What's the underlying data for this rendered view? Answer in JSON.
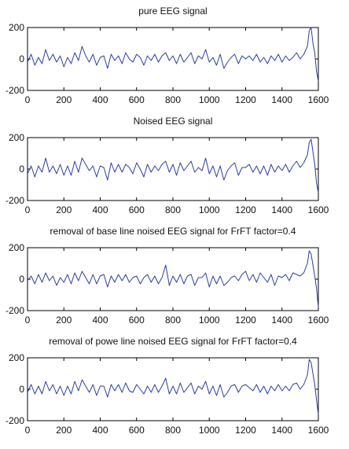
{
  "chart_data": [
    {
      "type": "line",
      "title": "pure EEG signal",
      "xlabel": "",
      "ylabel": "",
      "xlim": [
        0,
        1600
      ],
      "ylim": [
        -200,
        200
      ],
      "x_ticks": [
        "0",
        "200",
        "400",
        "600",
        "800",
        "1000",
        "1200",
        "1400",
        "1600"
      ],
      "y_ticks": [
        "200",
        "0",
        "-200"
      ],
      "grid": false,
      "series": [
        {
          "color": "#2b3f9e",
          "x": [
            0,
            20,
            40,
            60,
            80,
            100,
            120,
            140,
            160,
            180,
            200,
            220,
            240,
            260,
            280,
            300,
            320,
            340,
            360,
            380,
            400,
            420,
            440,
            460,
            480,
            500,
            520,
            540,
            560,
            580,
            600,
            620,
            640,
            660,
            680,
            700,
            720,
            740,
            760,
            780,
            800,
            820,
            840,
            860,
            880,
            900,
            920,
            940,
            960,
            980,
            1000,
            1020,
            1040,
            1060,
            1080,
            1100,
            1120,
            1140,
            1160,
            1180,
            1200,
            1220,
            1240,
            1260,
            1280,
            1300,
            1320,
            1340,
            1360,
            1380,
            1400,
            1420,
            1440,
            1460,
            1480,
            1500,
            1520,
            1540,
            1550,
            1560,
            1570,
            1580,
            1590,
            1600
          ],
          "values": [
            -20,
            30,
            -40,
            10,
            -30,
            60,
            -10,
            30,
            -20,
            20,
            -50,
            10,
            -30,
            40,
            -10,
            80,
            20,
            -20,
            30,
            -40,
            10,
            20,
            -60,
            30,
            -10,
            20,
            -30,
            40,
            0,
            -20,
            30,
            10,
            -40,
            20,
            -10,
            30,
            -20,
            20,
            40,
            -10,
            20,
            -30,
            30,
            -20,
            10,
            40,
            -30,
            20,
            0,
            60,
            -20,
            10,
            -40,
            30,
            -60,
            -20,
            10,
            30,
            -30,
            20,
            0,
            20,
            -10,
            30,
            -20,
            10,
            -30,
            20,
            -10,
            30,
            -20,
            20,
            -10,
            10,
            40,
            0,
            30,
            80,
            180,
            200,
            100,
            40,
            -80,
            -140
          ]
        }
      ]
    },
    {
      "type": "line",
      "title": "Noised EEG signal",
      "xlabel": "",
      "ylabel": "",
      "xlim": [
        0,
        1600
      ],
      "ylim": [
        -200,
        200
      ],
      "x_ticks": [
        "0",
        "200",
        "400",
        "600",
        "800",
        "1000",
        "1200",
        "1400",
        "1600"
      ],
      "y_ticks": [
        "200",
        "0",
        "-200"
      ],
      "grid": false,
      "series": [
        {
          "color": "#2b3f9e",
          "x": [
            0,
            20,
            40,
            60,
            80,
            100,
            120,
            140,
            160,
            180,
            200,
            220,
            240,
            260,
            280,
            300,
            320,
            340,
            360,
            380,
            400,
            420,
            440,
            460,
            480,
            500,
            520,
            540,
            560,
            580,
            600,
            620,
            640,
            660,
            680,
            700,
            720,
            740,
            760,
            780,
            800,
            820,
            840,
            860,
            880,
            900,
            920,
            940,
            960,
            980,
            1000,
            1020,
            1040,
            1060,
            1080,
            1100,
            1120,
            1140,
            1160,
            1180,
            1200,
            1220,
            1240,
            1260,
            1280,
            1300,
            1320,
            1340,
            1360,
            1380,
            1400,
            1420,
            1440,
            1460,
            1480,
            1500,
            1520,
            1540,
            1550,
            1560,
            1570,
            1580,
            1590,
            1600
          ],
          "values": [
            -30,
            20,
            -50,
            20,
            -20,
            70,
            -20,
            20,
            -30,
            30,
            -40,
            20,
            -40,
            50,
            -20,
            70,
            30,
            -10,
            20,
            -50,
            20,
            10,
            -70,
            40,
            -20,
            30,
            -20,
            30,
            10,
            -30,
            40,
            0,
            -50,
            30,
            -20,
            20,
            -10,
            30,
            50,
            -20,
            30,
            -40,
            40,
            -10,
            20,
            50,
            -20,
            10,
            -10,
            70,
            -30,
            20,
            -50,
            20,
            -70,
            -10,
            20,
            40,
            -40,
            10,
            10,
            30,
            -20,
            20,
            -30,
            20,
            -40,
            30,
            -20,
            20,
            -10,
            30,
            -20,
            20,
            50,
            10,
            40,
            90,
            170,
            190,
            110,
            30,
            -90,
            -150
          ]
        }
      ]
    },
    {
      "type": "line",
      "title": "removal  of base line noised EEG signal for FrFT factor=0.4",
      "xlabel": "",
      "ylabel": "",
      "xlim": [
        0,
        1600
      ],
      "ylim": [
        -200,
        200
      ],
      "x_ticks": [
        "0",
        "200",
        "400",
        "600",
        "800",
        "1000",
        "1200",
        "1400",
        "1600"
      ],
      "y_ticks": [
        "200",
        "0",
        "-200"
      ],
      "grid": false,
      "series": [
        {
          "color": "#2b3f9e",
          "x": [
            0,
            20,
            40,
            60,
            80,
            100,
            120,
            140,
            160,
            180,
            200,
            220,
            240,
            260,
            280,
            300,
            320,
            340,
            360,
            380,
            400,
            420,
            440,
            460,
            480,
            500,
            520,
            540,
            560,
            580,
            600,
            620,
            640,
            660,
            680,
            700,
            720,
            740,
            760,
            780,
            800,
            820,
            840,
            860,
            880,
            900,
            920,
            940,
            960,
            980,
            1000,
            1020,
            1040,
            1060,
            1080,
            1100,
            1120,
            1140,
            1160,
            1180,
            1200,
            1220,
            1240,
            1260,
            1280,
            1300,
            1320,
            1340,
            1360,
            1380,
            1400,
            1420,
            1440,
            1460,
            1480,
            1500,
            1520,
            1540,
            1550,
            1560,
            1570,
            1580,
            1590,
            1600
          ],
          "values": [
            -10,
            20,
            -30,
            30,
            -20,
            40,
            -10,
            20,
            -40,
            10,
            -20,
            30,
            -30,
            40,
            -10,
            50,
            10,
            -30,
            30,
            -30,
            20,
            30,
            -50,
            20,
            -20,
            30,
            -10,
            30,
            -20,
            10,
            20,
            -30,
            10,
            30,
            -20,
            20,
            -30,
            10,
            90,
            -40,
            20,
            -20,
            30,
            -30,
            20,
            30,
            -40,
            10,
            10,
            40,
            -50,
            20,
            -30,
            20,
            -40,
            -20,
            10,
            20,
            -10,
            30,
            50,
            -10,
            30,
            -20,
            40,
            10,
            -20,
            30,
            -40,
            20,
            10,
            30,
            -10,
            40,
            30,
            20,
            40,
            100,
            180,
            160,
            90,
            20,
            -60,
            -180
          ]
        }
      ]
    },
    {
      "type": "line",
      "title": "removal  of powe line noised EEG signal for FrFT factor=0.4",
      "xlabel": "",
      "ylabel": "",
      "xlim": [
        0,
        1600
      ],
      "ylim": [
        -200,
        200
      ],
      "x_ticks": [
        "0",
        "200",
        "400",
        "600",
        "800",
        "1000",
        "1200",
        "1400",
        "1600"
      ],
      "y_ticks": [
        "200",
        "0",
        "-200"
      ],
      "grid": false,
      "series": [
        {
          "color": "#2b3f9e",
          "x": [
            0,
            20,
            40,
            60,
            80,
            100,
            120,
            140,
            160,
            180,
            200,
            220,
            240,
            260,
            280,
            300,
            320,
            340,
            360,
            380,
            400,
            420,
            440,
            460,
            480,
            500,
            520,
            540,
            560,
            580,
            600,
            620,
            640,
            660,
            680,
            700,
            720,
            740,
            760,
            780,
            800,
            820,
            840,
            860,
            880,
            900,
            920,
            940,
            960,
            980,
            1000,
            1020,
            1040,
            1060,
            1080,
            1100,
            1120,
            1140,
            1160,
            1180,
            1200,
            1220,
            1240,
            1260,
            1280,
            1300,
            1320,
            1340,
            1360,
            1380,
            1400,
            1420,
            1440,
            1460,
            1480,
            1500,
            1520,
            1540,
            1550,
            1560,
            1570,
            1580,
            1590,
            1600
          ],
          "values": [
            -20,
            30,
            -30,
            20,
            -30,
            50,
            -10,
            30,
            -30,
            20,
            -40,
            20,
            -30,
            50,
            -10,
            60,
            20,
            -20,
            30,
            -40,
            20,
            20,
            -50,
            30,
            -10,
            30,
            -20,
            40,
            -10,
            -20,
            30,
            0,
            -30,
            20,
            -20,
            30,
            -20,
            20,
            70,
            -30,
            20,
            -30,
            40,
            -20,
            10,
            40,
            -30,
            20,
            0,
            50,
            -30,
            20,
            -40,
            30,
            -50,
            -20,
            20,
            30,
            -20,
            20,
            30,
            10,
            -10,
            30,
            -20,
            20,
            -30,
            20,
            -10,
            30,
            -10,
            20,
            -10,
            30,
            40,
            0,
            30,
            90,
            190,
            170,
            100,
            30,
            -70,
            -160
          ]
        }
      ]
    }
  ]
}
